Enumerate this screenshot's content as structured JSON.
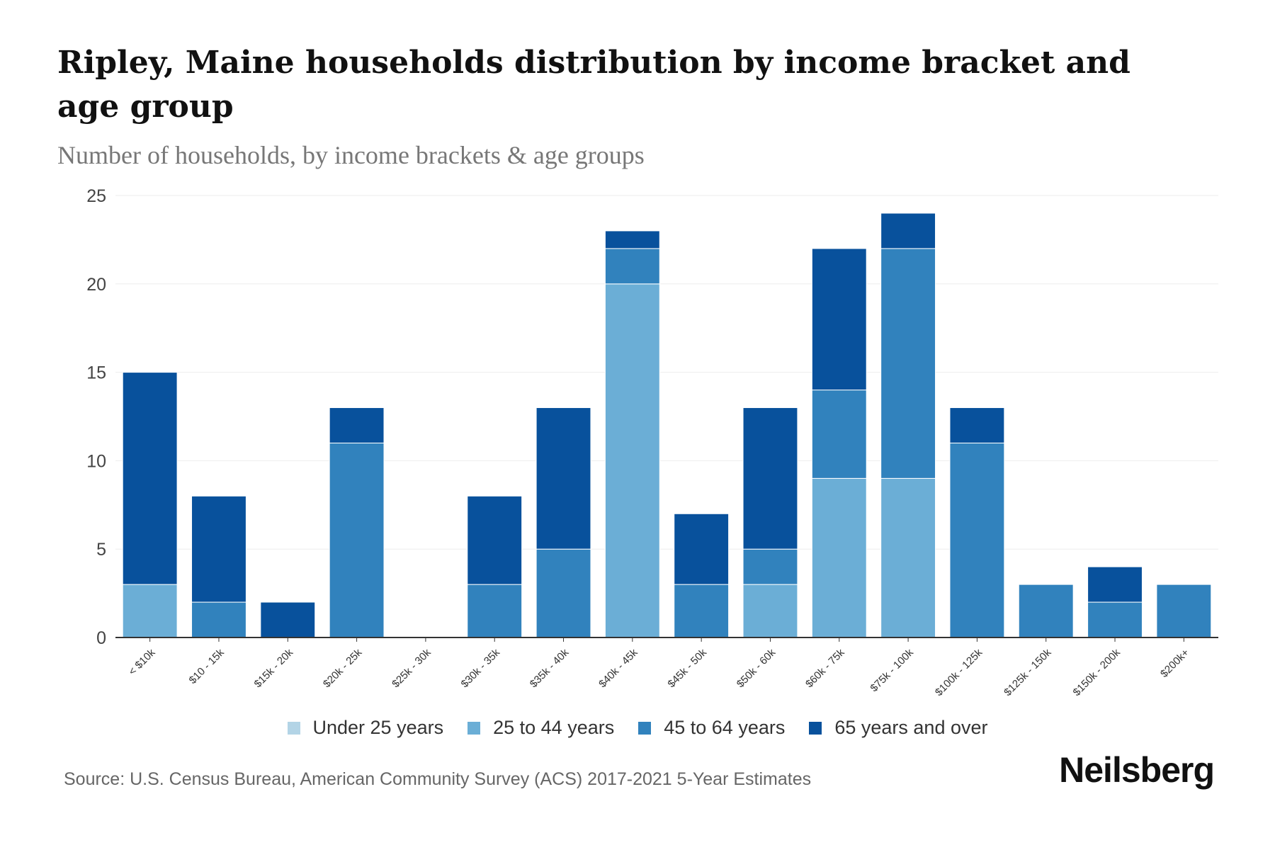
{
  "title": "Ripley, Maine households distribution by income bracket and age group",
  "subtitle": "Number of households, by income brackets & age groups",
  "source": "Source: U.S. Census Bureau, American Community Survey (ACS) 2017-2021 5-Year Estimates",
  "logo": "Neilsberg",
  "chart_data": {
    "type": "bar",
    "stacked": true,
    "title": "Ripley, Maine households distribution by income bracket and age group",
    "xlabel": "",
    "ylabel": "Number of households",
    "ylim": [
      0,
      25
    ],
    "yticks": [
      0,
      5,
      10,
      15,
      20,
      25
    ],
    "grid": true,
    "legend_position": "bottom",
    "categories": [
      "< $10k",
      "$10 - 15k",
      "$15k - 20k",
      "$20k - 25k",
      "$25k - 30k",
      "$30k - 35k",
      "$35k - 40k",
      "$40k - 45k",
      "$45k - 50k",
      "$50k - 60k",
      "$60k - 75k",
      "$75k - 100k",
      "$100k - 125k",
      "$125k - 150k",
      "$150k - 200k",
      "$200k+"
    ],
    "series": [
      {
        "name": "Under 25 years",
        "color": "#b3d4e6",
        "values": [
          0,
          0,
          0,
          0,
          0,
          0,
          0,
          0,
          0,
          0,
          0,
          0,
          0,
          0,
          0,
          0
        ]
      },
      {
        "name": "25 to 44 years",
        "color": "#6baed6",
        "values": [
          3,
          0,
          0,
          0,
          0,
          0,
          0,
          20,
          0,
          3,
          9,
          9,
          0,
          0,
          0,
          0
        ]
      },
      {
        "name": "45 to 64 years",
        "color": "#3182bd",
        "values": [
          0,
          2,
          0,
          11,
          0,
          3,
          5,
          2,
          3,
          2,
          5,
          13,
          11,
          3,
          2,
          3
        ]
      },
      {
        "name": "65 years and over",
        "color": "#08519c",
        "values": [
          12,
          6,
          2,
          2,
          0,
          5,
          8,
          1,
          4,
          8,
          8,
          2,
          2,
          0,
          2,
          0
        ]
      }
    ]
  }
}
